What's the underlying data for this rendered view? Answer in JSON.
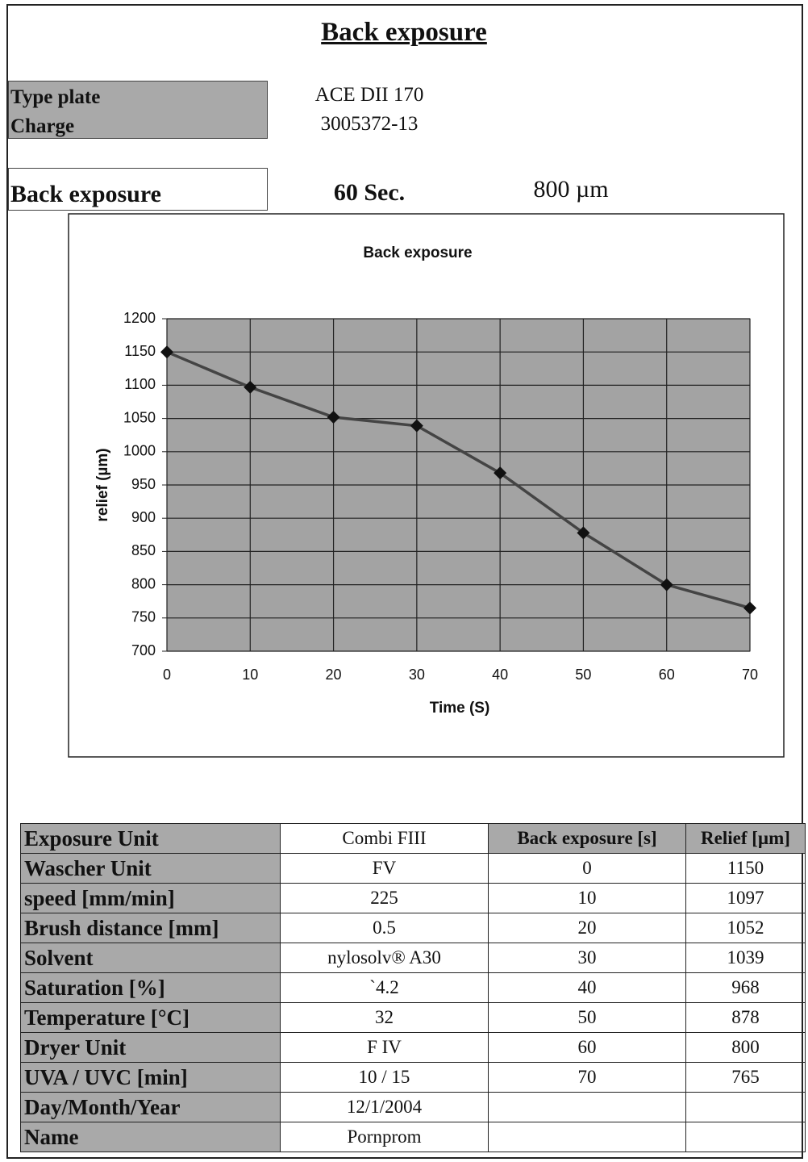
{
  "title": "Back exposure",
  "info": [
    {
      "label": "Type plate",
      "value": "ACE DII 170"
    },
    {
      "label": "Charge",
      "value": "3005372-13"
    }
  ],
  "exposure": {
    "label": "Back exposure",
    "time": "60 Sec.",
    "relief": "800 µm"
  },
  "chart_data": {
    "type": "line",
    "title": "Back exposure",
    "x_label": "Time (S)",
    "y_label": "relief (µm)",
    "x": [
      0,
      10,
      20,
      30,
      40,
      50,
      60,
      70
    ],
    "series": [
      {
        "name": "relief",
        "color": "#444444",
        "values": [
          1150,
          1097,
          1052,
          1039,
          968,
          878,
          800,
          765
        ]
      }
    ],
    "xlim": [
      0,
      70
    ],
    "xticks": [
      0,
      10,
      20,
      30,
      40,
      50,
      60,
      70
    ],
    "ylim": [
      700,
      1200
    ],
    "yticks": [
      700,
      750,
      800,
      850,
      900,
      950,
      1000,
      1050,
      1100,
      1150,
      1200
    ],
    "grid": true
  },
  "table": {
    "rows": [
      [
        "Exposure Unit",
        "Combi FIII",
        "Back exposure [s]",
        "Relief [µm]"
      ],
      [
        "Wascher Unit",
        "FV",
        "0",
        "1150"
      ],
      [
        "speed [mm/min]",
        "225",
        "10",
        "1097"
      ],
      [
        "Brush distance [mm]",
        "0.5",
        "20",
        "1052"
      ],
      [
        "Solvent",
        "nylosolv® A30",
        "30",
        "1039"
      ],
      [
        "Saturation [%]",
        "`4.2",
        "40",
        "968"
      ],
      [
        "Temperature [°C]",
        "32",
        "50",
        "878"
      ],
      [
        "Dryer Unit",
        "F IV",
        "60",
        "800"
      ],
      [
        "UVA / UVC [min]",
        "10 / 15",
        "70",
        "765"
      ],
      [
        "Day/Month/Year",
        "12/1/2004"
      ],
      [
        "Name",
        "Pornprom"
      ]
    ]
  }
}
